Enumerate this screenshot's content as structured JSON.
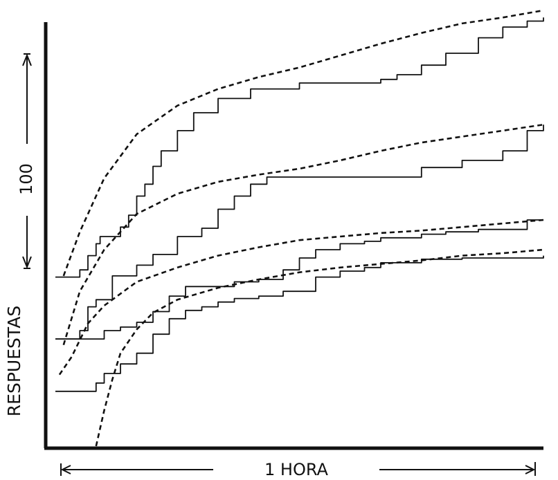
{
  "chart_data": {
    "type": "line",
    "title": "",
    "xlabel": "1 HORA",
    "ylabel": "RESPUESTAS",
    "scale_label": "100",
    "xlim": [
      0,
      60
    ],
    "grid": false,
    "legend": "none",
    "note": "Cumulative records; four stepped curves (solid) each with a fitted smooth curve (dashed).",
    "series": [
      {
        "style": "solid",
        "x": [
          0,
          2,
          3,
          4,
          5,
          5.5,
          8,
          9,
          10,
          11,
          12,
          13,
          15,
          17,
          20,
          24,
          30,
          35,
          38,
          40,
          42,
          45,
          48,
          52,
          55,
          58,
          60
        ],
        "y": [
          142,
          142,
          148,
          160,
          170,
          176,
          184,
          194,
          210,
          220,
          235,
          248,
          265,
          280,
          292,
          300,
          305,
          305,
          305,
          308,
          312,
          320,
          330,
          343,
          352,
          357,
          360
        ]
      },
      {
        "style": "dashed",
        "x": [
          1,
          3,
          6,
          10,
          15,
          20,
          25,
          30,
          35,
          40,
          45,
          50,
          55,
          60
        ],
        "y": [
          143,
          180,
          225,
          262,
          286,
          300,
          310,
          318,
          328,
          338,
          347,
          355,
          360,
          366
        ]
      },
      {
        "style": "solid",
        "x": [
          0,
          2,
          3,
          4,
          5,
          6,
          7,
          8,
          10,
          12,
          15,
          18,
          20,
          22,
          24,
          26,
          30,
          35,
          40,
          45,
          50,
          55,
          58,
          60
        ],
        "y": [
          90,
          90,
          97,
          117,
          123,
          123,
          143,
          143,
          152,
          161,
          176,
          183,
          199,
          210,
          220,
          226,
          226,
          226,
          226,
          234,
          240,
          248,
          265,
          270
        ]
      },
      {
        "style": "dashed",
        "x": [
          1,
          3,
          6,
          10,
          15,
          20,
          25,
          30,
          35,
          40,
          45,
          50,
          55,
          60
        ],
        "y": [
          85,
          130,
          165,
          195,
          212,
          222,
          228,
          233,
          240,
          248,
          255,
          260,
          265,
          270
        ]
      },
      {
        "style": "solid",
        "x": [
          0,
          4,
          6,
          8,
          10,
          12,
          14,
          16,
          18,
          20,
          22,
          25,
          28,
          30,
          32,
          35,
          38,
          40,
          43,
          45,
          48,
          52,
          55,
          58,
          60
        ],
        "y": [
          90,
          90,
          97,
          100,
          104,
          113,
          126,
          134,
          134,
          134,
          138,
          140,
          148,
          158,
          165,
          170,
          172,
          175,
          175,
          178,
          180,
          182,
          182,
          190,
          190
        ]
      },
      {
        "style": "dashed",
        "x": [
          0.5,
          2,
          4,
          6,
          10,
          15,
          20,
          25,
          30,
          35,
          40,
          45,
          50,
          55,
          60
        ],
        "y": [
          60,
          75,
          103,
          118,
          138,
          150,
          160,
          167,
          173,
          176,
          179,
          181,
          184,
          187,
          190
        ]
      },
      {
        "style": "solid",
        "x": [
          0,
          4,
          5,
          6,
          8,
          10,
          12,
          14,
          16,
          18,
          20,
          22,
          25,
          28,
          30,
          32,
          35,
          38,
          40,
          45,
          50,
          55,
          60
        ],
        "y": [
          46,
          46,
          53,
          61,
          69,
          78,
          94,
          107,
          114,
          117,
          121,
          124,
          126,
          130,
          130,
          142,
          147,
          150,
          154,
          157,
          158,
          158,
          160
        ]
      },
      {
        "style": "dashed",
        "x": [
          5,
          6,
          7,
          8,
          10,
          12,
          15,
          20,
          25,
          30,
          35,
          40,
          45,
          50,
          55,
          60
        ],
        "y": [
          0,
          30,
          56,
          78,
          98,
          112,
          123,
          133,
          140,
          146,
          150,
          153,
          156,
          160,
          162,
          165
        ]
      }
    ]
  }
}
